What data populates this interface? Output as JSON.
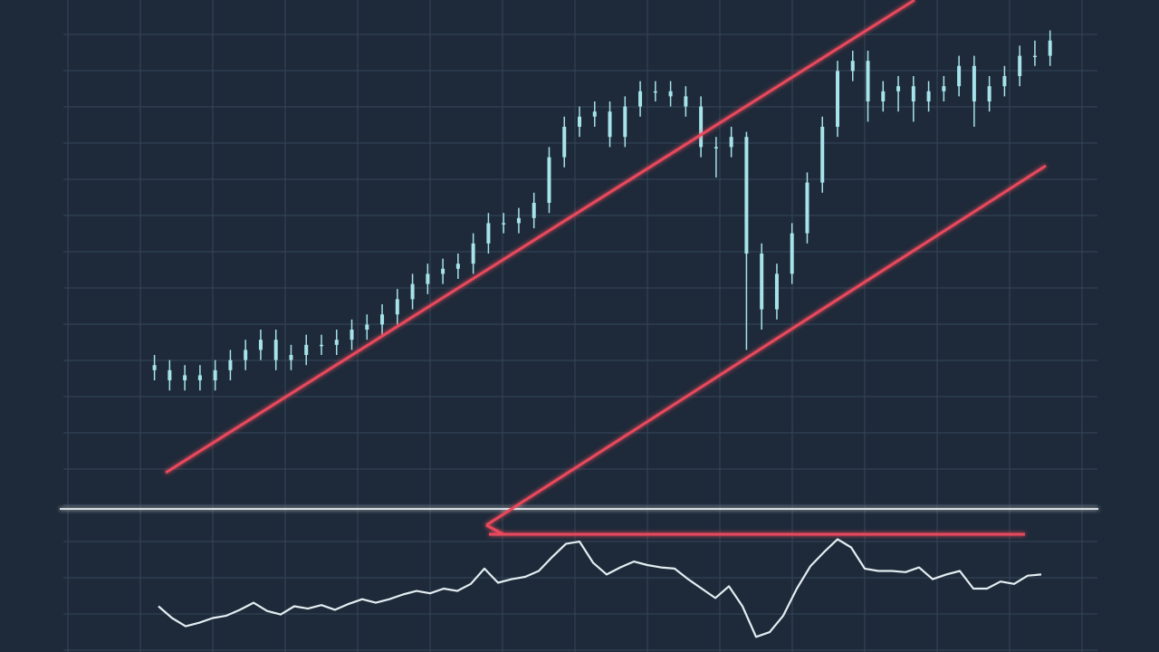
{
  "chart_data": [
    {
      "type": "candlestick",
      "color": "#a6e3ea",
      "grid": true,
      "xlim": [
        0,
        68
      ],
      "ylim": [
        0,
        100
      ],
      "x": [
        6,
        7,
        8,
        9,
        10,
        11,
        12,
        13,
        14,
        15,
        16,
        17,
        18,
        19,
        20,
        21,
        22,
        23,
        24,
        25,
        26,
        27,
        28,
        29,
        30,
        31,
        32,
        33,
        34,
        35,
        36,
        37,
        38,
        39,
        40,
        41,
        42,
        43,
        44,
        45,
        46,
        47,
        48,
        49,
        50,
        51,
        52,
        53,
        54,
        55,
        56,
        57,
        58,
        59,
        60,
        61,
        62,
        63,
        64,
        65
      ],
      "open": [
        28,
        27,
        25,
        26,
        25,
        27,
        29,
        31,
        33,
        29,
        30,
        32,
        32,
        33,
        35,
        36,
        38,
        41,
        44,
        46,
        47,
        48,
        52,
        56,
        56,
        57,
        60,
        69,
        75,
        77,
        78,
        73,
        79,
        82,
        82,
        81,
        79,
        71,
        71,
        73,
        50,
        39,
        46,
        54,
        64,
        75,
        86,
        88,
        80,
        82,
        83,
        80,
        82,
        83,
        87,
        80,
        83,
        85,
        89,
        89
      ],
      "high": [
        30,
        29,
        28,
        28,
        29,
        31,
        33,
        35,
        35,
        32,
        34,
        34,
        35,
        37,
        38,
        40,
        43,
        46,
        48,
        49,
        50,
        54,
        58,
        58,
        59,
        62,
        71,
        77,
        79,
        80,
        80,
        81,
        84,
        84,
        84,
        83,
        81,
        73,
        75,
        74,
        52,
        48,
        56,
        66,
        77,
        88,
        90,
        90,
        84,
        85,
        85,
        84,
        85,
        89,
        89,
        85,
        87,
        91,
        92,
        94
      ],
      "low": [
        25,
        23,
        23,
        23,
        23,
        25,
        27,
        29,
        27,
        27,
        28,
        30,
        30,
        31,
        33,
        34,
        36,
        39,
        42,
        44,
        45,
        46,
        50,
        54,
        54,
        55,
        58,
        67,
        73,
        75,
        71,
        71,
        77,
        80,
        79,
        77,
        69,
        65,
        69,
        31,
        35,
        37,
        44,
        52,
        62,
        73,
        84,
        76,
        78,
        78,
        76,
        78,
        80,
        81,
        75,
        78,
        81,
        83,
        87,
        87
      ],
      "close": [
        27,
        25,
        26,
        25,
        27,
        29,
        31,
        33,
        29,
        30,
        32,
        32,
        33,
        35,
        36,
        38,
        41,
        44,
        46,
        47,
        48,
        52,
        56,
        56,
        57,
        60,
        69,
        75,
        77,
        78,
        73,
        79,
        82,
        82,
        81,
        79,
        71,
        71,
        73,
        50,
        39,
        46,
        54,
        64,
        75,
        86,
        88,
        80,
        82,
        83,
        80,
        82,
        83,
        87,
        80,
        83,
        85,
        89,
        89,
        92
      ]
    },
    {
      "type": "line",
      "color": "#e4edf2",
      "grid": true,
      "xlim": [
        0,
        76
      ],
      "ylim": [
        0,
        100
      ],
      "x": [
        7,
        8,
        9,
        10,
        11,
        12,
        13,
        14,
        15,
        16,
        17,
        18,
        19,
        20,
        21,
        22,
        23,
        24,
        25,
        26,
        27,
        28,
        29,
        30,
        31,
        32,
        33,
        34,
        35,
        36,
        37,
        38,
        39,
        40,
        41,
        42,
        43,
        44,
        45,
        46,
        47,
        48,
        49,
        50,
        51,
        52,
        53,
        54,
        55,
        56,
        57,
        58,
        59,
        60,
        61,
        62,
        63,
        64,
        65,
        66,
        67,
        68,
        69,
        70,
        71,
        72
      ],
      "values": [
        35,
        25,
        18,
        21,
        25,
        27,
        32,
        38,
        31,
        28,
        35,
        33,
        36,
        32,
        37,
        41,
        38,
        41,
        45,
        48,
        46,
        50,
        48,
        54,
        67,
        55,
        58,
        60,
        65,
        77,
        88,
        90,
        72,
        62,
        68,
        73,
        70,
        68,
        67,
        58,
        50,
        42,
        52,
        35,
        9,
        13,
        27,
        50,
        69,
        81,
        92,
        85,
        67,
        65,
        65,
        64,
        68,
        58,
        62,
        65,
        50,
        50,
        56,
        54,
        61,
        62
      ]
    }
  ]
}
